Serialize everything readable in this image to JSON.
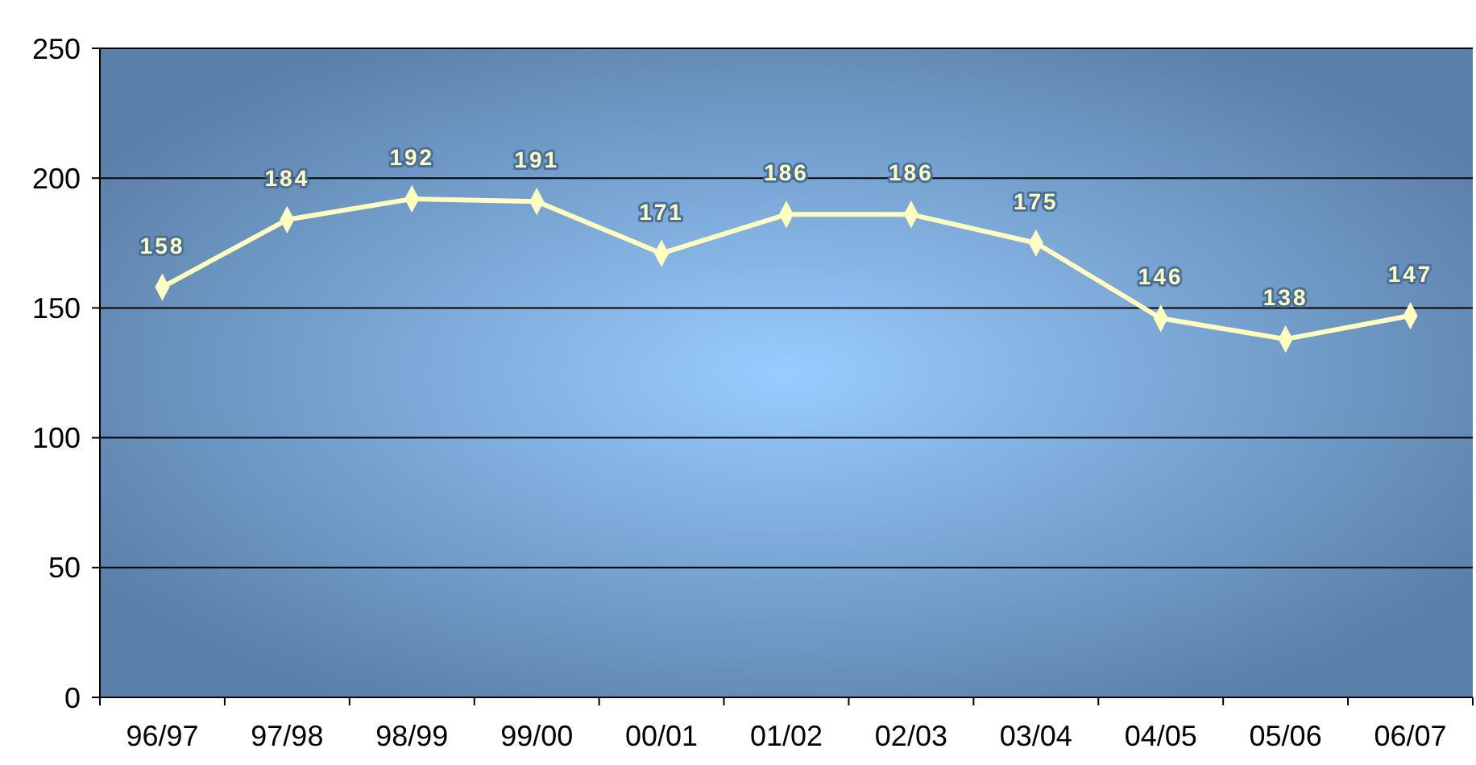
{
  "chart_data": {
    "type": "line",
    "categories": [
      "96/97",
      "97/98",
      "98/99",
      "99/00",
      "00/01",
      "01/02",
      "02/03",
      "03/04",
      "04/05",
      "05/06",
      "06/07"
    ],
    "series": [
      {
        "color": "#ffffc0",
        "values": [
          158,
          184,
          192,
          191,
          171,
          186,
          186,
          175,
          146,
          138,
          147
        ]
      }
    ],
    "ylim": [
      0,
      250
    ],
    "yticks": [
      0,
      50,
      100,
      150,
      200,
      250
    ],
    "grid": "y",
    "marker": "diamond",
    "line_style": "solid",
    "data_labels": true
  }
}
